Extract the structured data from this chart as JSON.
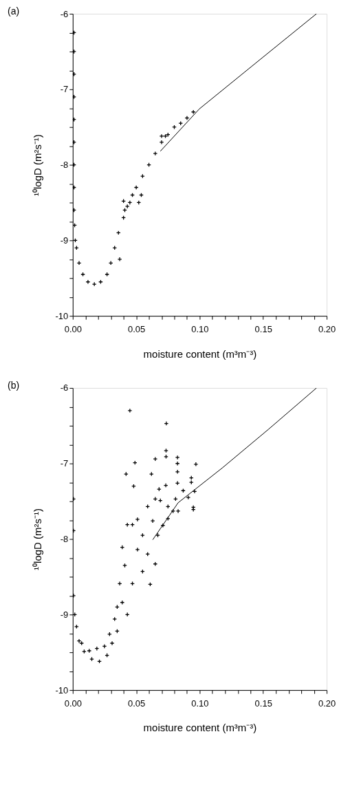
{
  "chart_data": [
    {
      "type": "scatter",
      "title": "(a)",
      "xlabel": "moisture content (m³m⁻³)",
      "ylabel": "¹⁰logD (m²s⁻¹)",
      "xlim": [
        0,
        0.2
      ],
      "ylim": [
        -10,
        -6
      ],
      "grid": false,
      "xticks": [
        {
          "value": 0,
          "label": "0.00"
        },
        {
          "value": 0.01,
          "label": null
        },
        {
          "value": 0.02,
          "label": null
        },
        {
          "value": 0.03,
          "label": null
        },
        {
          "value": 0.04,
          "label": null
        },
        {
          "value": 0.05,
          "label": "0.05"
        },
        {
          "value": 0.06,
          "label": null
        },
        {
          "value": 0.07,
          "label": null
        },
        {
          "value": 0.08,
          "label": null
        },
        {
          "value": 0.09,
          "label": null
        },
        {
          "value": 0.1,
          "label": "0.10"
        },
        {
          "value": 0.11,
          "label": null
        },
        {
          "value": 0.12,
          "label": null
        },
        {
          "value": 0.13,
          "label": null
        },
        {
          "value": 0.14,
          "label": null
        },
        {
          "value": 0.15,
          "label": "0.15"
        },
        {
          "value": 0.16,
          "label": null
        },
        {
          "value": 0.17,
          "label": null
        },
        {
          "value": 0.18,
          "label": null
        },
        {
          "value": 0.19,
          "label": null
        },
        {
          "value": 0.2,
          "label": "0.20"
        }
      ],
      "yticks": [
        -10,
        {
          "value": -9.75,
          "label": null
        },
        {
          "value": -9.5,
          "label": null
        },
        {
          "value": -9.25,
          "label": null
        },
        -9,
        {
          "value": -8.75,
          "label": null
        },
        {
          "value": -8.5,
          "label": null
        },
        {
          "value": -8.25,
          "label": null
        },
        -8,
        {
          "value": -7.75,
          "label": null
        },
        {
          "value": -7.5,
          "label": null
        },
        {
          "value": -7.25,
          "label": null
        },
        -7,
        {
          "value": -6.75,
          "label": null
        },
        {
          "value": -6.5,
          "label": null
        },
        {
          "value": -6.25,
          "label": null
        },
        -6
      ],
      "series": [
        {
          "type": "scatter",
          "color": "#000000",
          "marker": "cross",
          "x": [
            0.001,
            0.001,
            0.001,
            0.001,
            0.001,
            0.001,
            0.001,
            0.001,
            0.001,
            0.0015,
            0.002,
            0.003,
            0.005,
            0.008,
            0.012,
            0.017,
            0.022,
            0.027,
            0.03,
            0.033,
            0.036,
            0.037,
            0.04,
            0.04,
            0.041,
            0.043,
            0.045,
            0.047,
            0.05,
            0.052,
            0.054,
            0.055,
            0.06,
            0.065,
            0.07,
            0.07,
            0.073,
            0.075,
            0.08,
            0.085,
            0.09,
            0.095
          ],
          "values": [
            -6.25,
            -6.5,
            -6.8,
            -7.1,
            -7.4,
            -7.7,
            -8.0,
            -8.3,
            -8.6,
            -8.8,
            -9.0,
            -9.1,
            -9.3,
            -9.45,
            -9.55,
            -9.58,
            -9.55,
            -9.45,
            -9.3,
            -9.1,
            -8.9,
            -9.25,
            -8.7,
            -8.48,
            -8.6,
            -8.55,
            -8.5,
            -8.4,
            -8.3,
            -8.5,
            -8.4,
            -8.15,
            -8.0,
            -7.85,
            -7.7,
            -7.62,
            -7.62,
            -7.6,
            -7.5,
            -7.45,
            -7.38,
            -7.3
          ]
        },
        {
          "type": "line",
          "color": "#000000",
          "x": [
            0.069,
            0.0997,
            0.148,
            0.192
          ],
          "values": [
            -7.82,
            -7.26,
            -6.6,
            -6.0
          ]
        }
      ]
    },
    {
      "type": "scatter",
      "title": "(b)",
      "xlabel": "moisture content (m³m⁻³)",
      "ylabel": "¹⁰logD (m²s⁻¹)",
      "xlim": [
        0,
        0.2
      ],
      "ylim": [
        -10,
        -6
      ],
      "grid": false,
      "xticks": [
        {
          "value": 0,
          "label": "0.00"
        },
        {
          "value": 0.01,
          "label": null
        },
        {
          "value": 0.02,
          "label": null
        },
        {
          "value": 0.03,
          "label": null
        },
        {
          "value": 0.04,
          "label": null
        },
        {
          "value": 0.05,
          "label": "0.05"
        },
        {
          "value": 0.06,
          "label": null
        },
        {
          "value": 0.07,
          "label": null
        },
        {
          "value": 0.08,
          "label": null
        },
        {
          "value": 0.09,
          "label": null
        },
        {
          "value": 0.1,
          "label": "0.10"
        },
        {
          "value": 0.11,
          "label": null
        },
        {
          "value": 0.12,
          "label": null
        },
        {
          "value": 0.13,
          "label": null
        },
        {
          "value": 0.14,
          "label": null
        },
        {
          "value": 0.15,
          "label": "0.15"
        },
        {
          "value": 0.16,
          "label": null
        },
        {
          "value": 0.17,
          "label": null
        },
        {
          "value": 0.18,
          "label": null
        },
        {
          "value": 0.19,
          "label": null
        },
        {
          "value": 0.2,
          "label": "0.20"
        }
      ],
      "yticks": [
        -10,
        {
          "value": -9.75,
          "label": null
        },
        {
          "value": -9.5,
          "label": null
        },
        {
          "value": -9.25,
          "label": null
        },
        -9,
        {
          "value": -8.75,
          "label": null
        },
        {
          "value": -8.5,
          "label": null
        },
        {
          "value": -8.25,
          "label": null
        },
        -8,
        {
          "value": -7.75,
          "label": null
        },
        {
          "value": -7.5,
          "label": null
        },
        {
          "value": -7.25,
          "label": null
        },
        -7,
        {
          "value": -6.75,
          "label": null
        },
        {
          "value": -6.5,
          "label": null
        },
        {
          "value": -6.25,
          "label": null
        },
        -6
      ],
      "series": [
        {
          "type": "scatter",
          "color": "#000000",
          "marker": "cross",
          "x": [
            0.045,
            0.0737,
            0.0735,
            0.0735,
            0.049,
            0.042,
            0.048,
            0.065,
            0.062,
            0.0825,
            0.0825,
            0.0825,
            0.097,
            0.0934,
            0.0934,
            0.0825,
            0.0733,
            0.068,
            0.065,
            0.069,
            0.059,
            0.081,
            0.087,
            0.091,
            0.096,
            0.095,
            0.095,
            0.083,
            0.075,
            0.051,
            0.043,
            0.047,
            0.063,
            0.039,
            0.055,
            0.051,
            0.059,
            0.065,
            0.041,
            0.061,
            0.055,
            0.037,
            0.039,
            0.043,
            0.035,
            0.035,
            0.033,
            0.031,
            0.027,
            0.021,
            0.015,
            0.009,
            0.005,
            0.003,
            0.0016,
            0.0006,
            0.0006,
            0.0006,
            0.019,
            0.013,
            0.007,
            0.025,
            0.029,
            0.047,
            0.067,
            0.071,
            0.075,
            0.079
          ],
          "values": [
            -6.3,
            -6.47,
            -6.83,
            -6.91,
            -6.99,
            -7.14,
            -7.3,
            -6.94,
            -7.14,
            -6.92,
            -7.0,
            -7.11,
            -7.01,
            -7.19,
            -7.25,
            -7.26,
            -7.29,
            -7.34,
            -7.47,
            -7.49,
            -7.57,
            -7.47,
            -7.36,
            -7.45,
            -7.37,
            -7.58,
            -7.61,
            -7.63,
            -7.57,
            -7.74,
            -7.81,
            -7.81,
            -7.76,
            -8.11,
            -7.95,
            -8.14,
            -8.2,
            -8.33,
            -8.35,
            -8.6,
            -8.43,
            -8.59,
            -8.84,
            -9.0,
            -9.22,
            -8.9,
            -9.06,
            -9.38,
            -9.54,
            -9.62,
            -9.59,
            -9.49,
            -9.35,
            -9.16,
            -9.0,
            -8.75,
            -7.89,
            -7.47,
            -9.45,
            -9.48,
            -9.38,
            -9.42,
            -9.26,
            -8.59,
            -7.95,
            -7.82,
            -7.73,
            -7.63
          ]
        },
        {
          "type": "line",
          "color": "#000000",
          "x": [
            0.063,
            0.083,
            0.1177,
            0.154,
            0.192
          ],
          "values": [
            -8.01,
            -7.52,
            -7.06,
            -6.55,
            -6.0
          ]
        }
      ]
    }
  ]
}
